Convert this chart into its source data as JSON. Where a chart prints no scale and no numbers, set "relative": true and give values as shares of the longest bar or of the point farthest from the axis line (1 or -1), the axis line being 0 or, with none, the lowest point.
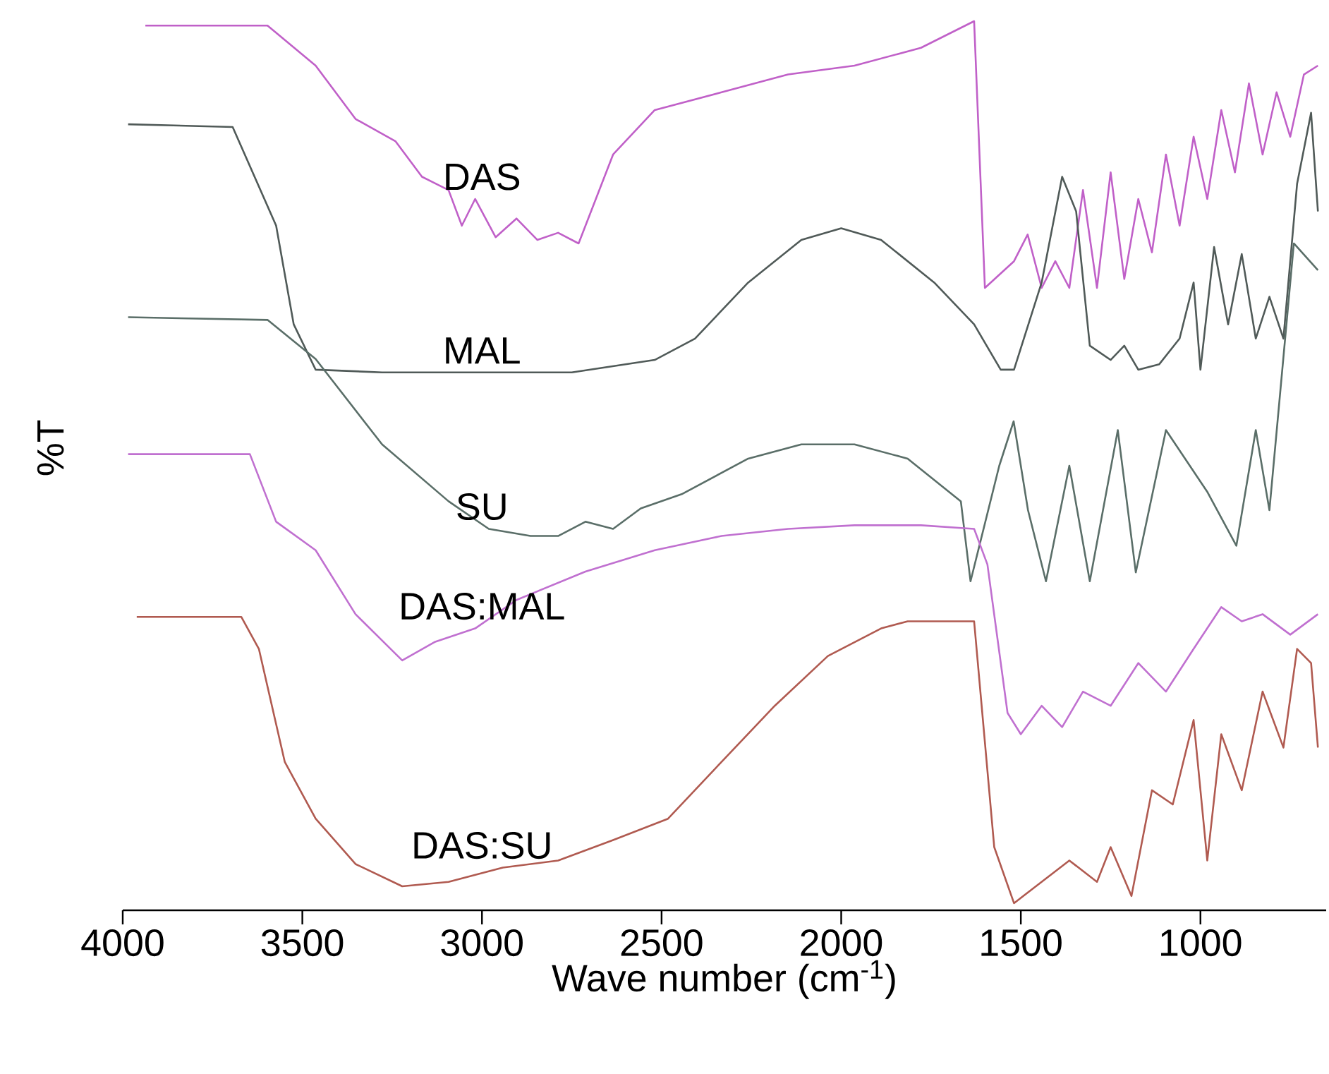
{
  "chart_data": {
    "type": "line",
    "relative": true,
    "ylabel": "%T",
    "xlabel": "Wave number (cm$^{-1}$)",
    "xlim": [
      4000,
      650
    ],
    "xticks": [
      4000,
      3500,
      3000,
      2500,
      2000,
      1500,
      1000
    ],
    "series": [
      {
        "name": "DAS",
        "color": "#c060c8",
        "x": [
          3937,
          3597,
          3463,
          3352,
          3241,
          3167,
          3093,
          3056,
          3019,
          2962,
          2904,
          2846,
          2788,
          2731,
          2635,
          2519,
          2333,
          2148,
          1963,
          1778,
          1630,
          1600,
          1519,
          1481,
          1442,
          1404,
          1365,
          1327,
          1288,
          1250,
          1212,
          1173,
          1135,
          1096,
          1058,
          1019,
          981,
          942,
          904,
          865,
          827,
          788,
          750,
          712,
          673
        ],
        "values": [
          0.995,
          0.995,
          0.95,
          0.89,
          0.865,
          0.825,
          0.81,
          0.77,
          0.8,
          0.757,
          0.778,
          0.754,
          0.762,
          0.75,
          0.85,
          0.9,
          0.92,
          0.94,
          0.95,
          0.97,
          1.0,
          0.7,
          0.73,
          0.76,
          0.7,
          0.73,
          0.7,
          0.81,
          0.7,
          0.83,
          0.71,
          0.8,
          0.74,
          0.85,
          0.77,
          0.87,
          0.8,
          0.9,
          0.83,
          0.93,
          0.85,
          0.92,
          0.87,
          0.94,
          0.95
        ]
      },
      {
        "name": "MAL",
        "color": "#505a58",
        "x": [
          3985,
          3694,
          3573,
          3524,
          3463,
          3278,
          2750,
          2519,
          2407,
          2259,
          2111,
          2000,
          1889,
          1741,
          1630,
          1556,
          1519,
          1442,
          1385,
          1346,
          1308,
          1250,
          1212,
          1173,
          1115,
          1058,
          1019,
          1000,
          962,
          923,
          885,
          846,
          808,
          769,
          731,
          692,
          673
        ],
        "values": [
          0.884,
          0.881,
          0.77,
          0.659,
          0.608,
          0.605,
          0.605,
          0.619,
          0.643,
          0.706,
          0.754,
          0.767,
          0.754,
          0.706,
          0.659,
          0.608,
          0.608,
          0.706,
          0.825,
          0.786,
          0.635,
          0.619,
          0.635,
          0.608,
          0.614,
          0.643,
          0.706,
          0.608,
          0.746,
          0.659,
          0.738,
          0.643,
          0.69,
          0.643,
          0.817,
          0.897,
          0.786
        ]
      },
      {
        "name": "SU",
        "color": "#5a6e68",
        "x": [
          3985,
          3597,
          3463,
          3278,
          3093,
          2981,
          2865,
          2788,
          2712,
          2635,
          2558,
          2444,
          2259,
          2111,
          1963,
          1815,
          1667,
          1640,
          1560,
          1520,
          1480,
          1430,
          1365,
          1308,
          1230,
          1180,
          1096,
          980,
          900,
          846,
          808,
          740,
          673
        ],
        "values": [
          0.667,
          0.664,
          0.62,
          0.524,
          0.46,
          0.429,
          0.421,
          0.421,
          0.437,
          0.429,
          0.452,
          0.468,
          0.508,
          0.524,
          0.524,
          0.508,
          0.46,
          0.37,
          0.5,
          0.55,
          0.45,
          0.37,
          0.5,
          0.37,
          0.54,
          0.38,
          0.54,
          0.47,
          0.41,
          0.54,
          0.45,
          0.75,
          0.72
        ]
      },
      {
        "name": "DAS:MAL",
        "color": "#c070d0",
        "x": [
          3985,
          3646,
          3573,
          3463,
          3352,
          3222,
          3130,
          3019,
          2904,
          2712,
          2519,
          2333,
          2148,
          1963,
          1778,
          1630,
          1593,
          1537,
          1500,
          1442,
          1385,
          1327,
          1250,
          1173,
          1096,
          1019,
          942,
          885,
          827,
          750,
          673
        ],
        "values": [
          0.513,
          0.513,
          0.437,
          0.405,
          0.333,
          0.281,
          0.302,
          0.317,
          0.349,
          0.381,
          0.405,
          0.421,
          0.429,
          0.433,
          0.433,
          0.429,
          0.389,
          0.222,
          0.198,
          0.23,
          0.206,
          0.246,
          0.23,
          0.278,
          0.246,
          0.294,
          0.341,
          0.325,
          0.333,
          0.31,
          0.333
        ]
      },
      {
        "name": "DAS:SU",
        "color": "#b05a50",
        "x": [
          3961,
          3670,
          3621,
          3549,
          3463,
          3352,
          3222,
          3093,
          2942,
          2788,
          2635,
          2482,
          2333,
          2185,
          2037,
          1889,
          1815,
          1741,
          1630,
          1574,
          1519,
          1365,
          1288,
          1250,
          1192,
          1135,
          1077,
          1019,
          981,
          942,
          885,
          827,
          769,
          731,
          692,
          673
        ],
        "values": [
          0.33,
          0.33,
          0.294,
          0.167,
          0.103,
          0.052,
          0.027,
          0.032,
          0.048,
          0.056,
          0.079,
          0.103,
          0.167,
          0.23,
          0.286,
          0.317,
          0.325,
          0.325,
          0.325,
          0.071,
          0.008,
          0.056,
          0.032,
          0.071,
          0.016,
          0.135,
          0.119,
          0.214,
          0.056,
          0.198,
          0.135,
          0.246,
          0.183,
          0.294,
          0.278,
          0.183
        ]
      }
    ],
    "legend": false
  }
}
